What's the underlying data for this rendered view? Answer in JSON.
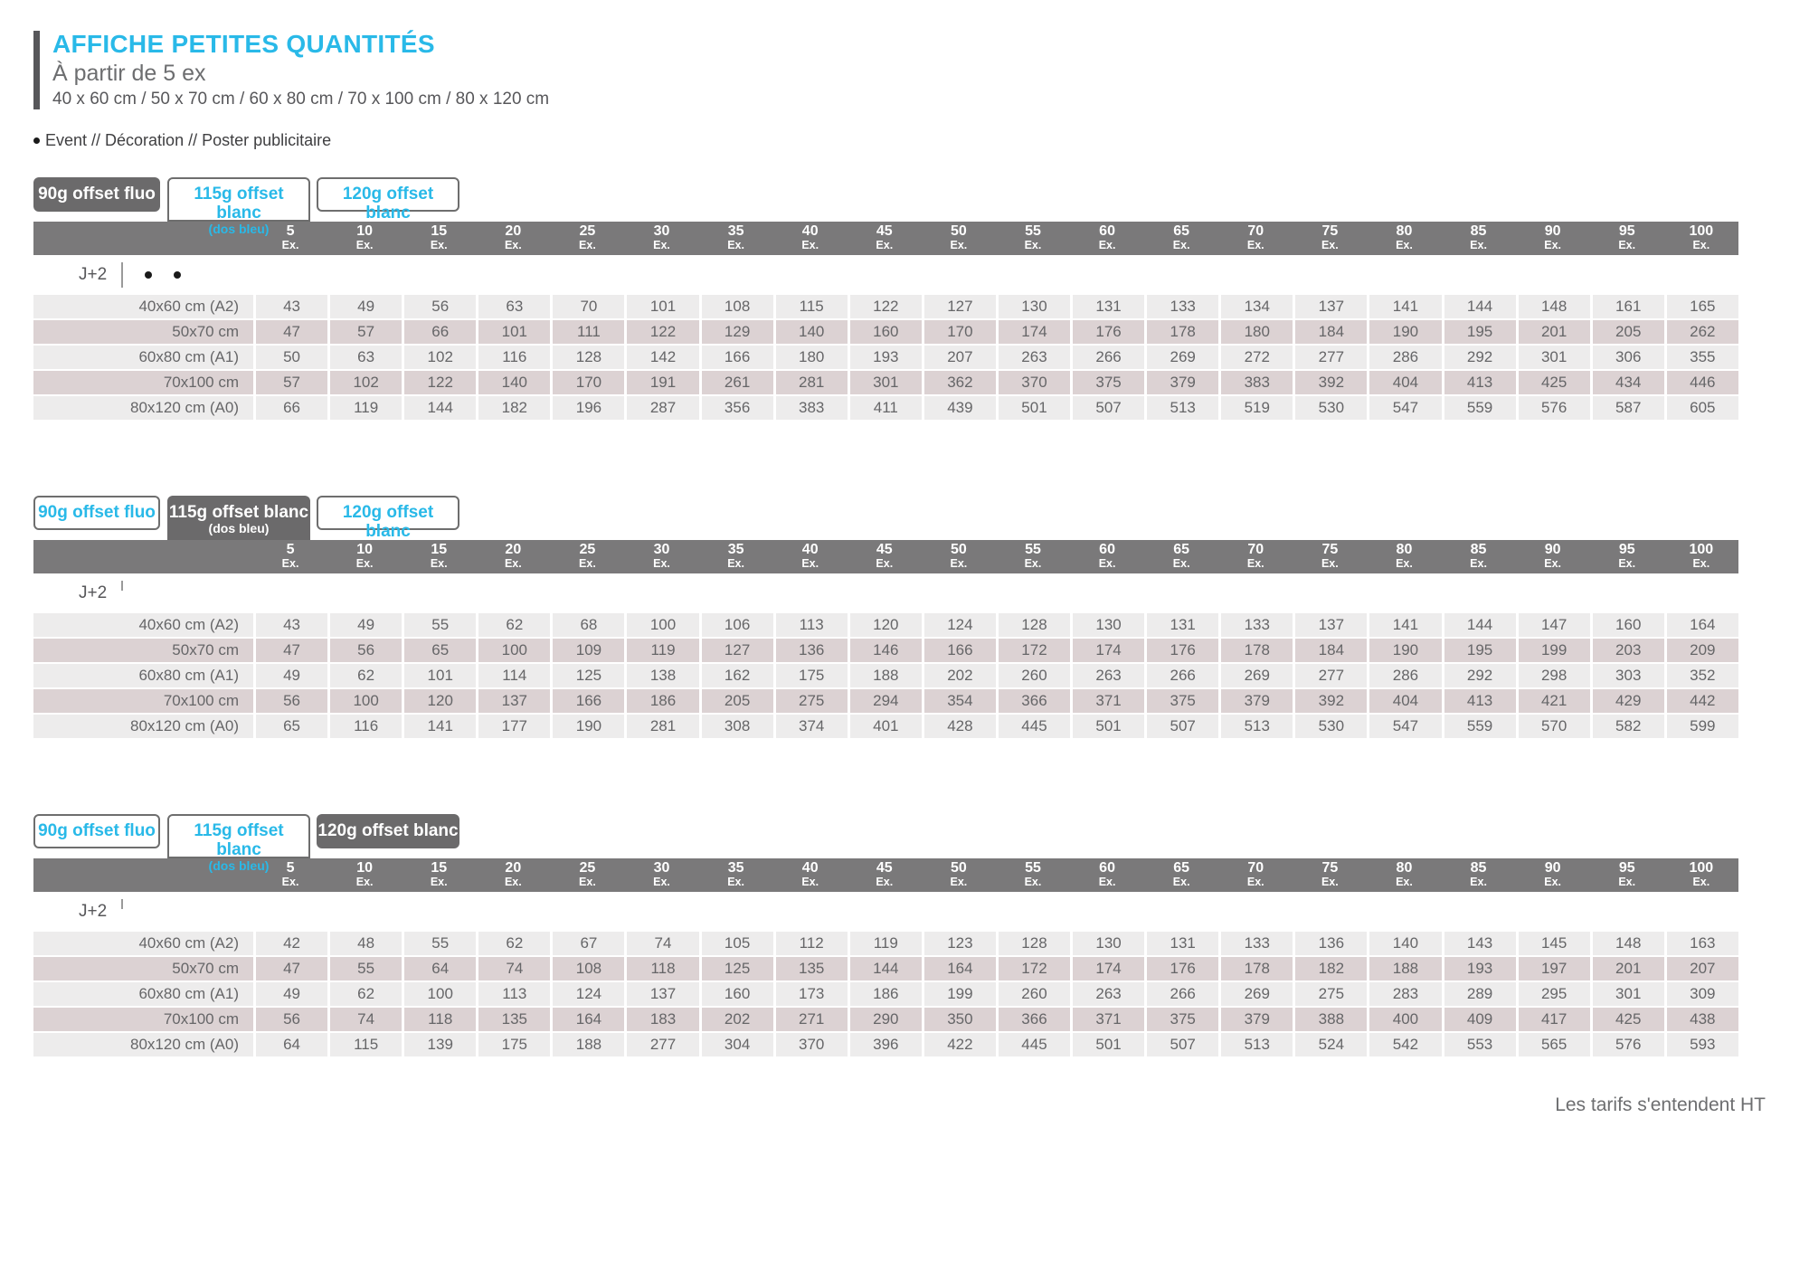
{
  "page": {
    "title": "AFFICHE PETITES QUANTITÉS",
    "subtitle": "À partir de 5 ex",
    "formats_line": "40 x 60 cm / 50 x 70 cm / 60 x 80 cm / 70 x 100 cm / 80 x 120 cm",
    "category_line": "Event // Décoration // Poster publicitaire",
    "footer_note": "Les tarifs s'entendent HT"
  },
  "pricing": {
    "delay_label": "J+2",
    "unit_label": "Ex.",
    "quantities": [
      "5",
      "10",
      "15",
      "20",
      "25",
      "30",
      "35",
      "40",
      "45",
      "50",
      "55",
      "60",
      "65",
      "70",
      "75",
      "80",
      "85",
      "90",
      "95",
      "100"
    ],
    "sizes": [
      "40x60 cm (A2)",
      "50x70 cm",
      "60x80 cm (A1)",
      "70x100 cm",
      "80x120 cm (A0)"
    ],
    "tabs": [
      {
        "label": "90g offset fluo",
        "sublabel": ""
      },
      {
        "label": "115g offset blanc",
        "sublabel": "(dos bleu)"
      },
      {
        "label": "120g offset blanc",
        "sublabel": ""
      }
    ],
    "tables": [
      {
        "active_tab": 0,
        "j2_dots": 2,
        "prices": [
          [
            43,
            49,
            56,
            63,
            70,
            101,
            108,
            115,
            122,
            127,
            130,
            131,
            133,
            134,
            137,
            141,
            144,
            148,
            161,
            165
          ],
          [
            47,
            57,
            66,
            101,
            111,
            122,
            129,
            140,
            160,
            170,
            174,
            176,
            178,
            180,
            184,
            190,
            195,
            201,
            205,
            262
          ],
          [
            50,
            63,
            102,
            116,
            128,
            142,
            166,
            180,
            193,
            207,
            263,
            266,
            269,
            272,
            277,
            286,
            292,
            301,
            306,
            355
          ],
          [
            57,
            102,
            122,
            140,
            170,
            191,
            261,
            281,
            301,
            362,
            370,
            375,
            379,
            383,
            392,
            404,
            413,
            425,
            434,
            446
          ],
          [
            66,
            119,
            144,
            182,
            196,
            287,
            356,
            383,
            411,
            439,
            501,
            507,
            513,
            519,
            530,
            547,
            559,
            576,
            587,
            605
          ]
        ]
      },
      {
        "active_tab": 1,
        "j2_dots": 0,
        "prices": [
          [
            43,
            49,
            55,
            62,
            68,
            100,
            106,
            113,
            120,
            124,
            128,
            130,
            131,
            133,
            137,
            141,
            144,
            147,
            160,
            164
          ],
          [
            47,
            56,
            65,
            100,
            109,
            119,
            127,
            136,
            146,
            166,
            172,
            174,
            176,
            178,
            184,
            190,
            195,
            199,
            203,
            209
          ],
          [
            49,
            62,
            101,
            114,
            125,
            138,
            162,
            175,
            188,
            202,
            260,
            263,
            266,
            269,
            277,
            286,
            292,
            298,
            303,
            352
          ],
          [
            56,
            100,
            120,
            137,
            166,
            186,
            205,
            275,
            294,
            354,
            366,
            371,
            375,
            379,
            392,
            404,
            413,
            421,
            429,
            442
          ],
          [
            65,
            116,
            141,
            177,
            190,
            281,
            308,
            374,
            401,
            428,
            445,
            501,
            507,
            513,
            530,
            547,
            559,
            570,
            582,
            599
          ]
        ]
      },
      {
        "active_tab": 2,
        "j2_dots": 0,
        "prices": [
          [
            42,
            48,
            55,
            62,
            67,
            74,
            105,
            112,
            119,
            123,
            128,
            130,
            131,
            133,
            136,
            140,
            143,
            145,
            148,
            163
          ],
          [
            47,
            55,
            64,
            74,
            108,
            118,
            125,
            135,
            144,
            164,
            172,
            174,
            176,
            178,
            182,
            188,
            193,
            197,
            201,
            207
          ],
          [
            49,
            62,
            100,
            113,
            124,
            137,
            160,
            173,
            186,
            199,
            260,
            263,
            266,
            269,
            275,
            283,
            289,
            295,
            301,
            309
          ],
          [
            56,
            74,
            118,
            135,
            164,
            183,
            202,
            271,
            290,
            350,
            366,
            371,
            375,
            379,
            388,
            400,
            409,
            417,
            425,
            438
          ],
          [
            64,
            115,
            139,
            175,
            188,
            277,
            304,
            370,
            396,
            422,
            445,
            501,
            507,
            513,
            524,
            542,
            553,
            565,
            576,
            593
          ]
        ]
      }
    ]
  },
  "colors": {
    "accent": "#29b9e8",
    "tab_active_bg": "#6b6a6b",
    "qty_bar_bg": "#7a797a",
    "row_light": "#edecec",
    "row_shade": "#dcd2d3",
    "text_gray": "#6d6e70"
  }
}
